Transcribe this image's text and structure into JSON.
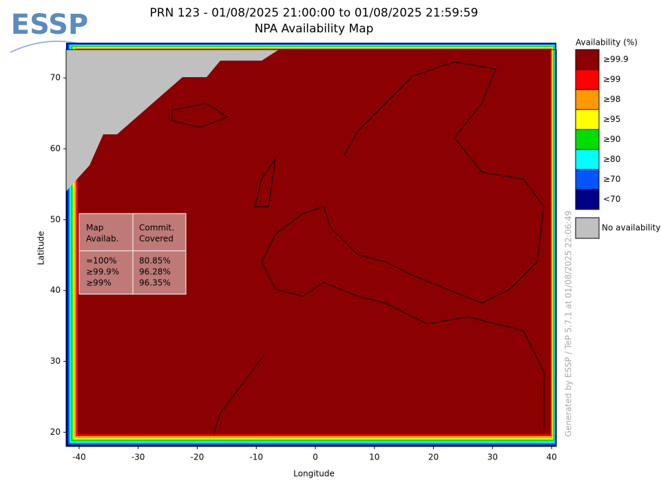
{
  "chart_data": {
    "type": "map",
    "logo": "ESSP",
    "title": [
      "PRN 123 - 01/08/2025 21:00:00 to 01/08/2025 21:59:59",
      "NPA Availability Map"
    ],
    "x_label": "Longitude",
    "y_label": "Latitude",
    "xlim": [
      -42.2,
      40.8
    ],
    "ylim": [
      18,
      74
    ],
    "xticks": [
      -40,
      -30,
      -20,
      -10,
      0,
      10,
      20,
      30,
      40
    ],
    "yticks": [
      20,
      30,
      40,
      50,
      60,
      70
    ],
    "legend_title": "Availability (%)",
    "legend": [
      {
        "label": "≥99.9",
        "color": "#8b0000"
      },
      {
        "label": "≥99",
        "color": "#ff0000"
      },
      {
        "label": "≥98",
        "color": "#ff9900"
      },
      {
        "label": "≥95",
        "color": "#ffff00"
      },
      {
        "label": "≥90",
        "color": "#00dd00"
      },
      {
        "label": "≥80",
        "color": "#00ffff"
      },
      {
        "label": "≥70",
        "color": "#0055ff"
      },
      {
        "label": "<70",
        "color": "#000088"
      }
    ],
    "no_availability": {
      "label": "No availability",
      "color": "#c0c0c0"
    },
    "table": {
      "headers": [
        [
          "Map",
          "Availab."
        ],
        [
          "Commit.",
          "Covered"
        ]
      ],
      "rows": [
        [
          "=100%",
          "80.85%"
        ],
        [
          "≥99.9%",
          "96.28%"
        ],
        [
          "≥99%",
          "96.35%"
        ]
      ]
    },
    "credit": "Generated by ESSP / TeP 5.7.1 at 01/08/2025 22:06:49"
  }
}
